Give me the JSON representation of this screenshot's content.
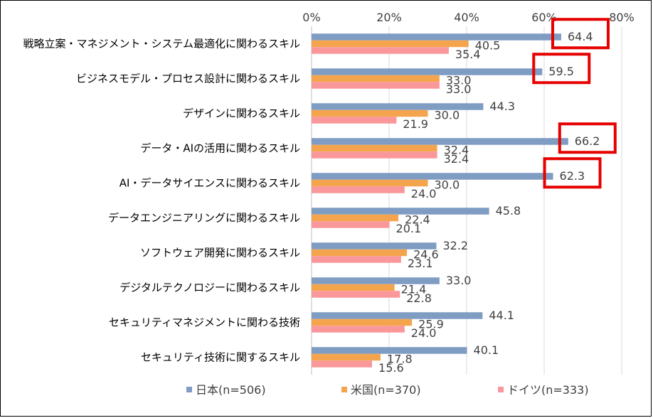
{
  "chart_data": {
    "type": "bar",
    "orientation": "horizontal",
    "xlim": [
      0,
      80
    ],
    "xticks": [
      "0%",
      "20%",
      "40%",
      "60%",
      "80%"
    ],
    "xtick_values": [
      0,
      20,
      40,
      60,
      80
    ],
    "categories": [
      "戦略立案・マネジメント・システム最適化に関わるスキル",
      "ビジネスモデル・プロセス設計に関わるスキル",
      "デザインに関わるスキル",
      "データ・AIの活用に関わるスキル",
      "AI・データサイエンスに関わるスキル",
      "データエンジニアリングに関わるスキル",
      "ソフトウェア開発に関わるスキル",
      "デジタルテクノロジーに関わるスキル",
      "セキュリティマネジメントに関わる技術",
      "セキュリティ技術に関するスキル"
    ],
    "series": [
      {
        "name": "日本(n=506)",
        "color": "#7F9CC3",
        "labels": [
          "64.4",
          "59.5",
          "44.3",
          "66.2",
          "62.3",
          "45.8",
          "32.2",
          "33.0",
          "44.1",
          "40.1"
        ],
        "values": [
          64.4,
          59.5,
          44.3,
          66.2,
          62.3,
          45.8,
          32.2,
          33.0,
          44.1,
          40.1
        ]
      },
      {
        "name": "米国(n=370)",
        "color": "#F5A44E",
        "labels": [
          "40.5",
          "33.0",
          "30.0",
          "32.4",
          "30.0",
          "22.4",
          "24.6",
          "21.4",
          "25.9",
          "17.8"
        ],
        "values": [
          40.5,
          33.0,
          30.0,
          32.4,
          30.0,
          22.4,
          24.6,
          21.4,
          25.9,
          17.8
        ]
      },
      {
        "name": "ドイツ(n=333)",
        "color": "#F9979A",
        "labels": [
          "35.4",
          "33.0",
          "21.9",
          "32.4",
          "24.0",
          "20.1",
          "23.1",
          "22.8",
          "24.0",
          "15.6"
        ],
        "values": [
          35.4,
          33.0,
          21.9,
          32.4,
          24.0,
          20.1,
          23.1,
          22.8,
          24.0,
          15.6
        ]
      }
    ],
    "highlight_categories": [
      0,
      1,
      3,
      4
    ],
    "highlight_color": "#E60000"
  }
}
